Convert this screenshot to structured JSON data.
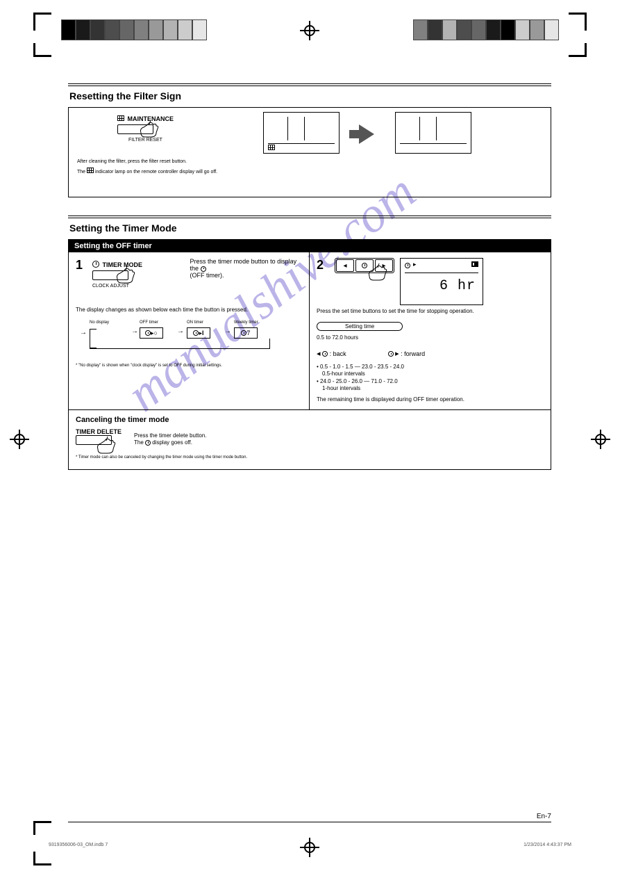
{
  "grayscale_strip": [
    "#000000",
    "#1a1a1a",
    "#333333",
    "#4d4d4d",
    "#666666",
    "#808080",
    "#999999",
    "#b3b3b3",
    "#cccccc",
    "#e6e6e6"
  ],
  "grayscale_strip_right": [
    "#808080",
    "#333333",
    "#b3b3b3",
    "#4d4d4d",
    "#666666",
    "#1a1a1a",
    "#000000",
    "#cccccc",
    "#999999",
    "#e6e6e6"
  ],
  "watermark": "manualshive.com",
  "section_filter": {
    "title": "Resetting the Filter Sign",
    "button_top": "MAINTENANCE",
    "button_bottom": "FILTER RESET",
    "caption": "After cleaning the filter, press the filter reset button.",
    "note": "The      indicator lamp on the remote controller display will go off."
  },
  "section_timer": {
    "title": "Setting the Timer Mode",
    "black_bar": "Setting the OFF timer",
    "step1": {
      "num": "1",
      "button_top": "TIMER MODE",
      "button_bottom": "CLOCK ADJUST",
      "line1": "Press the timer mode button to display the",
      "line2": "(OFF timer).",
      "note": "The display changes as shown below each time the button is pressed.",
      "seq_labels": [
        "No display",
        "OFF timer",
        "ON timer",
        "Weekly timer"
      ],
      "asterisk": "* \"No display\" is shown when \"clock display\" is set to OFF during initial settings."
    },
    "step2": {
      "num": "2",
      "line1": "Press the set time buttons to set the time for stopping operation.",
      "pill": "Setting time",
      "range": "0.5 to 72.0 hours",
      "back_label": ": back",
      "fwd_label": ": forward",
      "detail1": "• 0.5 - 1.0 - 1.5 — 23.0 - 23.5 - 24.0",
      "detail1b": "  0.5-hour intervals",
      "detail2": "• 24.0 - 25.0 - 26.0 — 71.0 - 72.0",
      "detail2b": "  1-hour intervals",
      "note": "The remaining time is displayed during OFF timer operation.",
      "lcd_value": "6 hr"
    },
    "cancel": {
      "heading": "Canceling the timer mode",
      "button": "TIMER DELETE",
      "text1": "Press the timer delete button.",
      "text2": "The       display goes off.",
      "asterisk": "* Timer mode can also be canceled by changing the timer mode using the timer mode button."
    }
  },
  "footer": {
    "filename": "9319356006-03_OM.indb   7",
    "timestamp": "1/23/2014   4:43:37 PM",
    "pagenum": "En-7"
  }
}
